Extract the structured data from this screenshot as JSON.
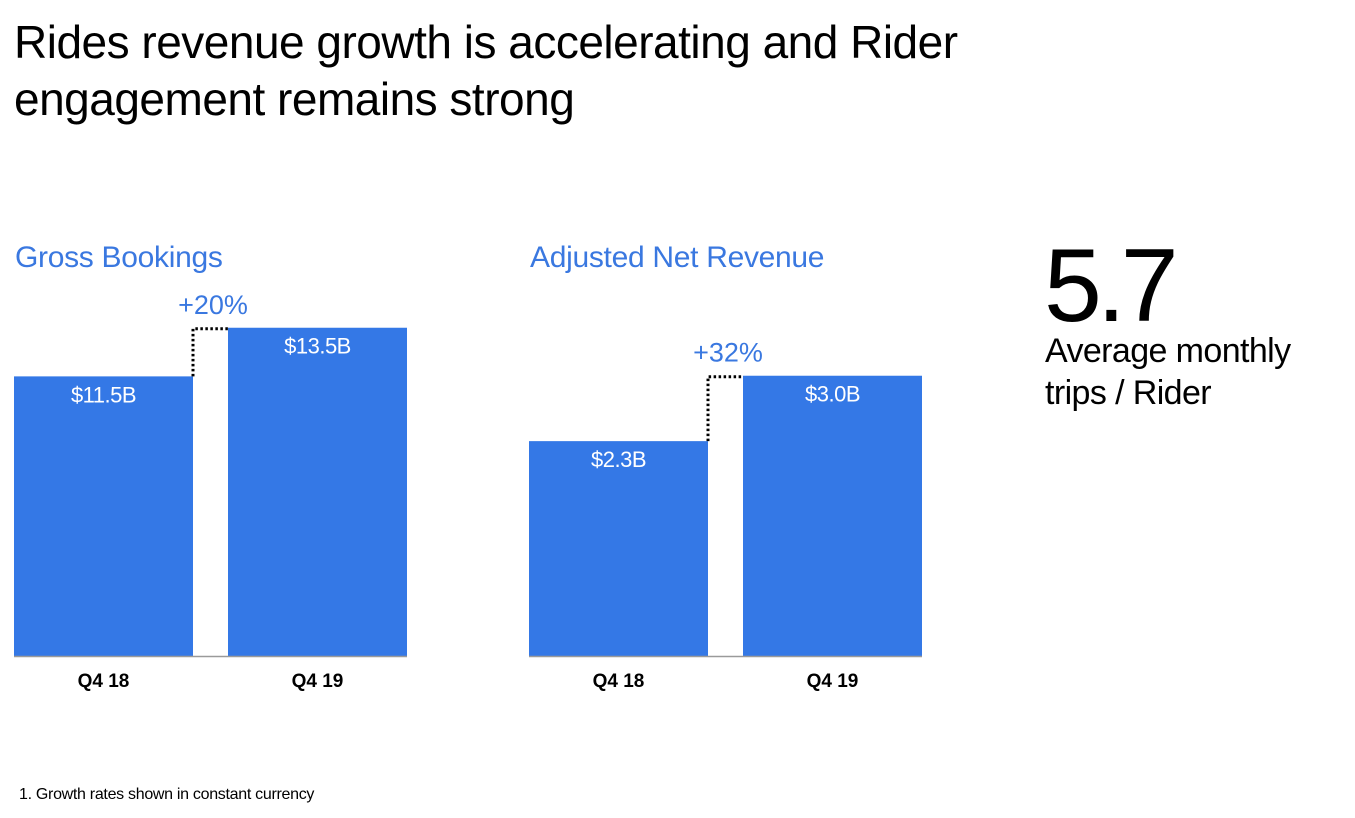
{
  "title": {
    "line1": "Rides revenue growth is accelerating and Rider",
    "line2": "engagement remains strong"
  },
  "colors": {
    "bar": "#3478e6",
    "heading": "#3a78e0",
    "text": "#000000"
  },
  "chart_data": [
    {
      "type": "bar",
      "title": "Gross Bookings",
      "categories": [
        "Q4 18",
        "Q4 19"
      ],
      "values": [
        11.5,
        13.5
      ],
      "value_labels": [
        "$11.5B",
        "$13.5B"
      ],
      "unit": "$B",
      "growth_label": "+20%",
      "xlabel": "",
      "ylabel": "",
      "ylim": [
        0,
        14.6
      ],
      "grid": false,
      "legend": "none"
    },
    {
      "type": "bar",
      "title": "Adjusted Net Revenue",
      "categories": [
        "Q4 18",
        "Q4 19"
      ],
      "values": [
        2.3,
        3.0
      ],
      "value_labels": [
        "$2.3B",
        "$3.0B"
      ],
      "unit": "$B",
      "growth_label": "+32%",
      "xlabel": "",
      "ylabel": "",
      "ylim": [
        0,
        3.8
      ],
      "grid": false,
      "legend": "none"
    }
  ],
  "kpi": {
    "value": "5.7",
    "label_line1": "Average monthly",
    "label_line2": "trips / Rider"
  },
  "footnote": "1. Growth rates shown in constant currency"
}
